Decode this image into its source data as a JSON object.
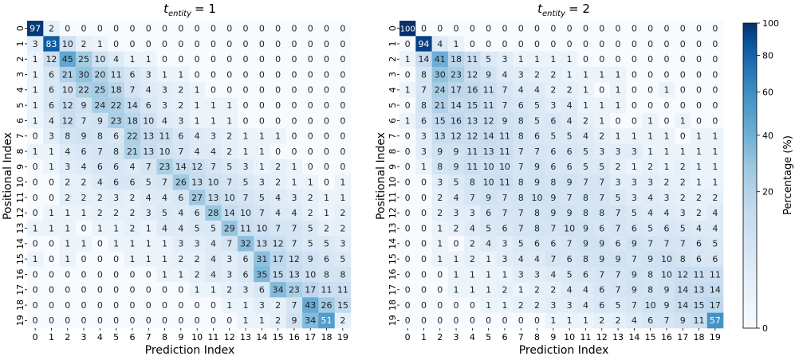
{
  "chart_data": [
    {
      "type": "heatmap",
      "title": "t_entity = 1",
      "title_main": "t",
      "title_sub": "entity",
      "title_rest": "= 1",
      "xlabel": "Prediction Index",
      "ylabel": "Positional Index",
      "x_categories": [
        "0",
        "1",
        "2",
        "3",
        "4",
        "5",
        "6",
        "7",
        "8",
        "9",
        "10",
        "11",
        "12",
        "13",
        "14",
        "15",
        "16",
        "17",
        "18",
        "19"
      ],
      "y_categories": [
        "0",
        "1",
        "2",
        "3",
        "4",
        "5",
        "6",
        "7",
        "8",
        "9",
        "10",
        "11",
        "12",
        "13",
        "14",
        "15",
        "16",
        "17",
        "18",
        "19"
      ],
      "values": [
        [
          97,
          2,
          0,
          0,
          0,
          0,
          0,
          0,
          0,
          0,
          0,
          0,
          0,
          0,
          0,
          0,
          0,
          0,
          0,
          0
        ],
        [
          3,
          83,
          10,
          2,
          1,
          0,
          0,
          0,
          0,
          0,
          0,
          0,
          0,
          0,
          0,
          0,
          0,
          0,
          0,
          0
        ],
        [
          1,
          12,
          45,
          25,
          10,
          4,
          1,
          1,
          0,
          0,
          0,
          0,
          0,
          0,
          0,
          0,
          0,
          0,
          0,
          0
        ],
        [
          1,
          6,
          21,
          30,
          20,
          11,
          6,
          3,
          1,
          1,
          0,
          0,
          0,
          0,
          0,
          0,
          0,
          0,
          0,
          0
        ],
        [
          1,
          6,
          10,
          22,
          25,
          18,
          7,
          4,
          3,
          2,
          1,
          0,
          0,
          0,
          0,
          0,
          0,
          0,
          0,
          0
        ],
        [
          1,
          6,
          12,
          9,
          24,
          22,
          14,
          6,
          3,
          2,
          1,
          1,
          1,
          0,
          0,
          0,
          0,
          0,
          0,
          0
        ],
        [
          1,
          4,
          12,
          7,
          9,
          23,
          18,
          10,
          4,
          3,
          1,
          1,
          1,
          0,
          0,
          0,
          0,
          0,
          0,
          0
        ],
        [
          0,
          3,
          8,
          9,
          8,
          6,
          22,
          13,
          11,
          6,
          4,
          3,
          2,
          1,
          1,
          1,
          0,
          0,
          0,
          0
        ],
        [
          1,
          1,
          4,
          6,
          7,
          8,
          21,
          13,
          10,
          7,
          4,
          4,
          2,
          1,
          1,
          0,
          0,
          0,
          0,
          0
        ],
        [
          0,
          1,
          3,
          4,
          6,
          6,
          4,
          7,
          23,
          14,
          12,
          7,
          5,
          3,
          1,
          2,
          1,
          0,
          0,
          0
        ],
        [
          0,
          0,
          2,
          2,
          4,
          6,
          6,
          5,
          7,
          26,
          13,
          10,
          7,
          5,
          3,
          2,
          1,
          1,
          0,
          1
        ],
        [
          0,
          0,
          2,
          2,
          2,
          3,
          2,
          4,
          4,
          6,
          27,
          13,
          10,
          7,
          5,
          4,
          3,
          2,
          1,
          1
        ],
        [
          0,
          1,
          1,
          1,
          2,
          2,
          2,
          3,
          5,
          4,
          6,
          28,
          14,
          10,
          7,
          4,
          4,
          2,
          1,
          2
        ],
        [
          1,
          1,
          1,
          0,
          1,
          1,
          2,
          1,
          4,
          4,
          5,
          5,
          29,
          11,
          10,
          7,
          7,
          5,
          2,
          2
        ],
        [
          0,
          0,
          1,
          1,
          0,
          1,
          1,
          1,
          1,
          3,
          3,
          4,
          7,
          32,
          13,
          12,
          7,
          5,
          5,
          3
        ],
        [
          1,
          0,
          1,
          0,
          0,
          0,
          1,
          1,
          1,
          2,
          2,
          4,
          3,
          6,
          31,
          17,
          12,
          9,
          6,
          5
        ],
        [
          0,
          0,
          0,
          0,
          0,
          0,
          0,
          0,
          1,
          1,
          2,
          4,
          3,
          6,
          35,
          15,
          13,
          10,
          8,
          8
        ],
        [
          0,
          0,
          0,
          0,
          0,
          0,
          0,
          0,
          0,
          0,
          1,
          1,
          2,
          3,
          6,
          34,
          23,
          17,
          11,
          11
        ],
        [
          0,
          0,
          0,
          0,
          0,
          0,
          0,
          0,
          0,
          0,
          0,
          0,
          1,
          1,
          3,
          2,
          7,
          43,
          26,
          15
        ],
        [
          0,
          0,
          0,
          0,
          0,
          0,
          0,
          0,
          0,
          0,
          0,
          0,
          0,
          1,
          1,
          2,
          9,
          34,
          51,
          2
        ]
      ]
    },
    {
      "type": "heatmap",
      "title": "t_entity = 2",
      "title_main": "t",
      "title_sub": "entity",
      "title_rest": "= 2",
      "xlabel": "Prediction Index",
      "ylabel": "Positional Index",
      "x_categories": [
        "0",
        "1",
        "2",
        "3",
        "4",
        "5",
        "6",
        "7",
        "8",
        "9",
        "10",
        "11",
        "12",
        "13",
        "14",
        "15",
        "16",
        "17",
        "18",
        "19"
      ],
      "y_categories": [
        "0",
        "1",
        "2",
        "3",
        "4",
        "5",
        "6",
        "7",
        "8",
        "9",
        "10",
        "11",
        "12",
        "13",
        "14",
        "15",
        "16",
        "17",
        "18",
        "19"
      ],
      "values": [
        [
          100,
          0,
          0,
          0,
          0,
          0,
          0,
          0,
          0,
          0,
          0,
          0,
          0,
          0,
          0,
          0,
          0,
          0,
          0,
          0
        ],
        [
          0,
          94,
          4,
          1,
          0,
          0,
          0,
          0,
          0,
          0,
          0,
          0,
          0,
          0,
          0,
          0,
          0,
          0,
          0,
          0
        ],
        [
          1,
          14,
          41,
          18,
          11,
          5,
          3,
          1,
          1,
          1,
          1,
          0,
          0,
          0,
          0,
          0,
          0,
          0,
          0,
          0
        ],
        [
          0,
          8,
          30,
          23,
          12,
          9,
          4,
          3,
          2,
          2,
          1,
          1,
          1,
          1,
          0,
          0,
          0,
          0,
          0,
          0
        ],
        [
          1,
          7,
          24,
          17,
          16,
          11,
          7,
          4,
          4,
          2,
          2,
          1,
          0,
          1,
          0,
          0,
          1,
          0,
          0,
          0
        ],
        [
          0,
          8,
          21,
          14,
          15,
          11,
          7,
          6,
          5,
          3,
          4,
          1,
          1,
          1,
          0,
          0,
          0,
          0,
          0,
          0
        ],
        [
          1,
          6,
          15,
          16,
          13,
          12,
          9,
          8,
          5,
          6,
          4,
          2,
          1,
          0,
          0,
          1,
          0,
          1,
          0,
          0
        ],
        [
          0,
          3,
          13,
          12,
          12,
          14,
          11,
          8,
          6,
          5,
          5,
          4,
          2,
          1,
          1,
          1,
          1,
          0,
          1,
          1
        ],
        [
          0,
          3,
          9,
          9,
          11,
          13,
          11,
          7,
          7,
          6,
          6,
          5,
          3,
          3,
          3,
          1,
          1,
          1,
          1,
          1
        ],
        [
          0,
          1,
          8,
          9,
          11,
          10,
          10,
          7,
          9,
          6,
          6,
          5,
          5,
          2,
          1,
          2,
          1,
          2,
          1,
          1
        ],
        [
          0,
          0,
          3,
          5,
          8,
          10,
          11,
          8,
          9,
          8,
          9,
          7,
          7,
          3,
          3,
          3,
          2,
          2,
          1,
          1
        ],
        [
          0,
          0,
          2,
          4,
          7,
          9,
          7,
          8,
          10,
          9,
          7,
          8,
          7,
          5,
          3,
          4,
          3,
          2,
          2,
          2
        ],
        [
          0,
          0,
          2,
          3,
          3,
          6,
          7,
          7,
          8,
          9,
          9,
          8,
          8,
          7,
          5,
          4,
          4,
          3,
          2,
          4
        ],
        [
          0,
          0,
          1,
          2,
          4,
          5,
          6,
          7,
          8,
          7,
          10,
          9,
          6,
          7,
          6,
          5,
          6,
          5,
          4,
          4
        ],
        [
          0,
          0,
          1,
          0,
          2,
          4,
          3,
          5,
          6,
          6,
          7,
          9,
          9,
          6,
          9,
          7,
          7,
          7,
          6,
          5
        ],
        [
          0,
          0,
          1,
          1,
          2,
          1,
          3,
          4,
          4,
          7,
          6,
          8,
          9,
          9,
          7,
          9,
          10,
          8,
          6,
          6
        ],
        [
          0,
          0,
          0,
          1,
          1,
          1,
          1,
          3,
          3,
          4,
          5,
          6,
          7,
          7,
          9,
          8,
          10,
          12,
          11,
          11
        ],
        [
          0,
          0,
          0,
          1,
          1,
          1,
          2,
          1,
          2,
          2,
          4,
          4,
          6,
          7,
          9,
          8,
          9,
          14,
          13,
          14
        ],
        [
          0,
          0,
          0,
          0,
          0,
          1,
          1,
          2,
          2,
          3,
          3,
          4,
          6,
          5,
          7,
          10,
          9,
          14,
          15,
          17
        ],
        [
          0,
          0,
          0,
          0,
          0,
          0,
          0,
          0,
          0,
          1,
          1,
          1,
          2,
          2,
          4,
          6,
          7,
          9,
          11,
          57
        ]
      ]
    }
  ],
  "colorbar": {
    "label": "Percentage (%)",
    "ticks": [
      "0",
      "20",
      "40",
      "60",
      "80",
      "100"
    ],
    "range": [
      0,
      100
    ],
    "scale": "sqrt",
    "color_low": "#f7fbff",
    "color_high": "#08306b"
  }
}
